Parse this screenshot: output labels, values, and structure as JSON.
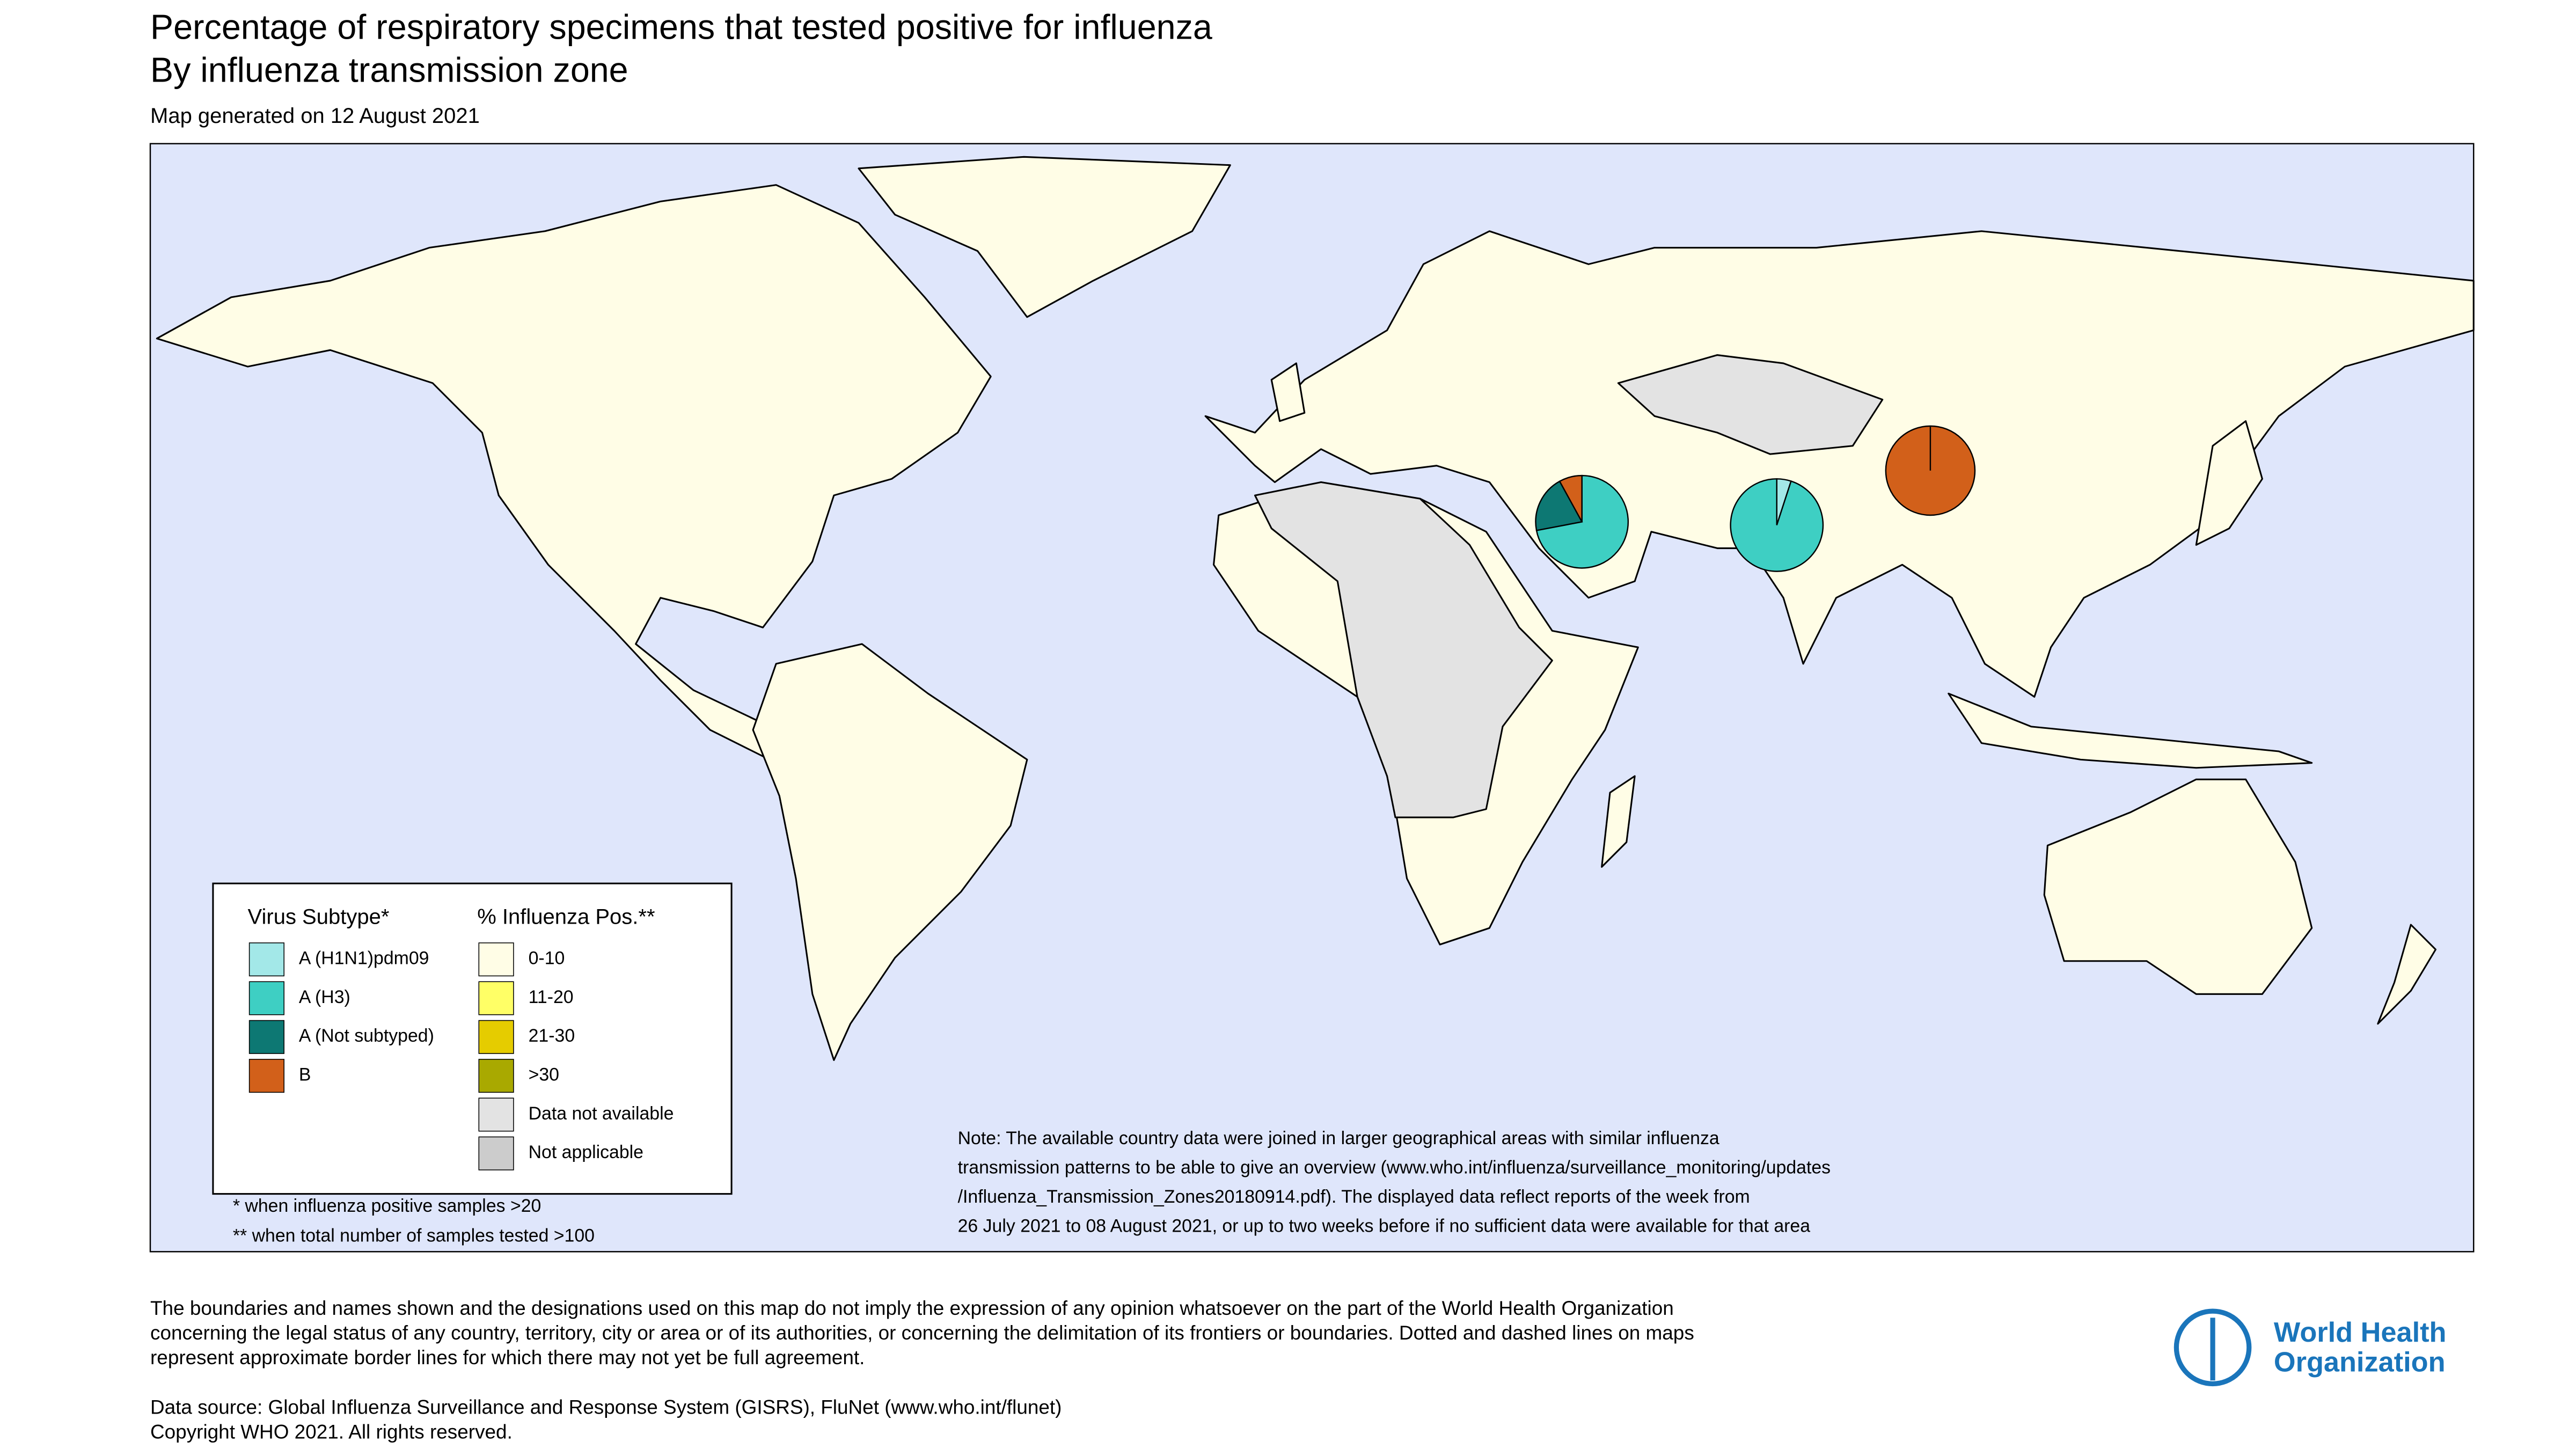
{
  "header": {
    "title": "Percentage of respiratory specimens that tested positive for influenza",
    "subtitle": "By influenza transmission zone",
    "date": "Map generated on 12 August 2021"
  },
  "legend": {
    "subtype": {
      "title": "Virus Subtype*",
      "items": [
        {
          "label": "A (H1N1)pdm09",
          "color": "#a3e8e8"
        },
        {
          "label": "A (H3)",
          "color": "#3ecfc3"
        },
        {
          "label": "A (Not subtyped)",
          "color": "#0d7873"
        },
        {
          "label": "B",
          "color": "#d2601a"
        }
      ]
    },
    "positivity": {
      "title": "% Influenza Pos.**",
      "items": [
        {
          "label": "0-10",
          "color": "#fffde6"
        },
        {
          "label": "11-20",
          "color": "#ffff66"
        },
        {
          "label": "21-30",
          "color": "#e5cc00"
        },
        {
          "label": ">30",
          "color": "#a9a900"
        },
        {
          "label": "Data not available",
          "color": "#e3e3e3"
        },
        {
          "label": "Not applicable",
          "color": "#cccccc"
        }
      ]
    },
    "footnotes": [
      "* when influenza positive samples >20",
      "** when total number of samples tested >100"
    ]
  },
  "pies": [
    {
      "values": [
        0,
        72,
        20,
        8
      ]
    },
    {
      "values": [
        5,
        95,
        0,
        0
      ]
    },
    {
      "values": [
        0,
        0,
        0,
        100
      ]
    }
  ],
  "note": [
    "Note: The available country data were joined in larger geographical areas with similar influenza",
    "transmission patterns to be able to give an overview (www.who.int/influenza/surveillance_monitoring/updates",
    "/Influenza_Transmission_Zones20180914.pdf). The displayed data reflect reports of the week from",
    "26 July 2021 to 08 August 2021, or up to two weeks before if no sufficient data were available for that area"
  ],
  "disclaimer": [
    "The boundaries and names shown and the designations used on this map do not imply the expression of any opinion whatsoever on the part of the World Health Organization",
    "concerning the legal status of any country, territory, city or area or of its authorities, or concerning the delimitation of its frontiers or boundaries. Dotted and dashed lines on maps",
    "represent approximate border lines for which there may not yet be full agreement."
  ],
  "source": [
    "Data source: Global Influenza Surveillance and Response System (GISRS), FluNet (www.who.int/flunet)",
    "Copyright WHO 2021. All rights reserved."
  ],
  "logo": [
    "World Health",
    "Organization"
  ]
}
